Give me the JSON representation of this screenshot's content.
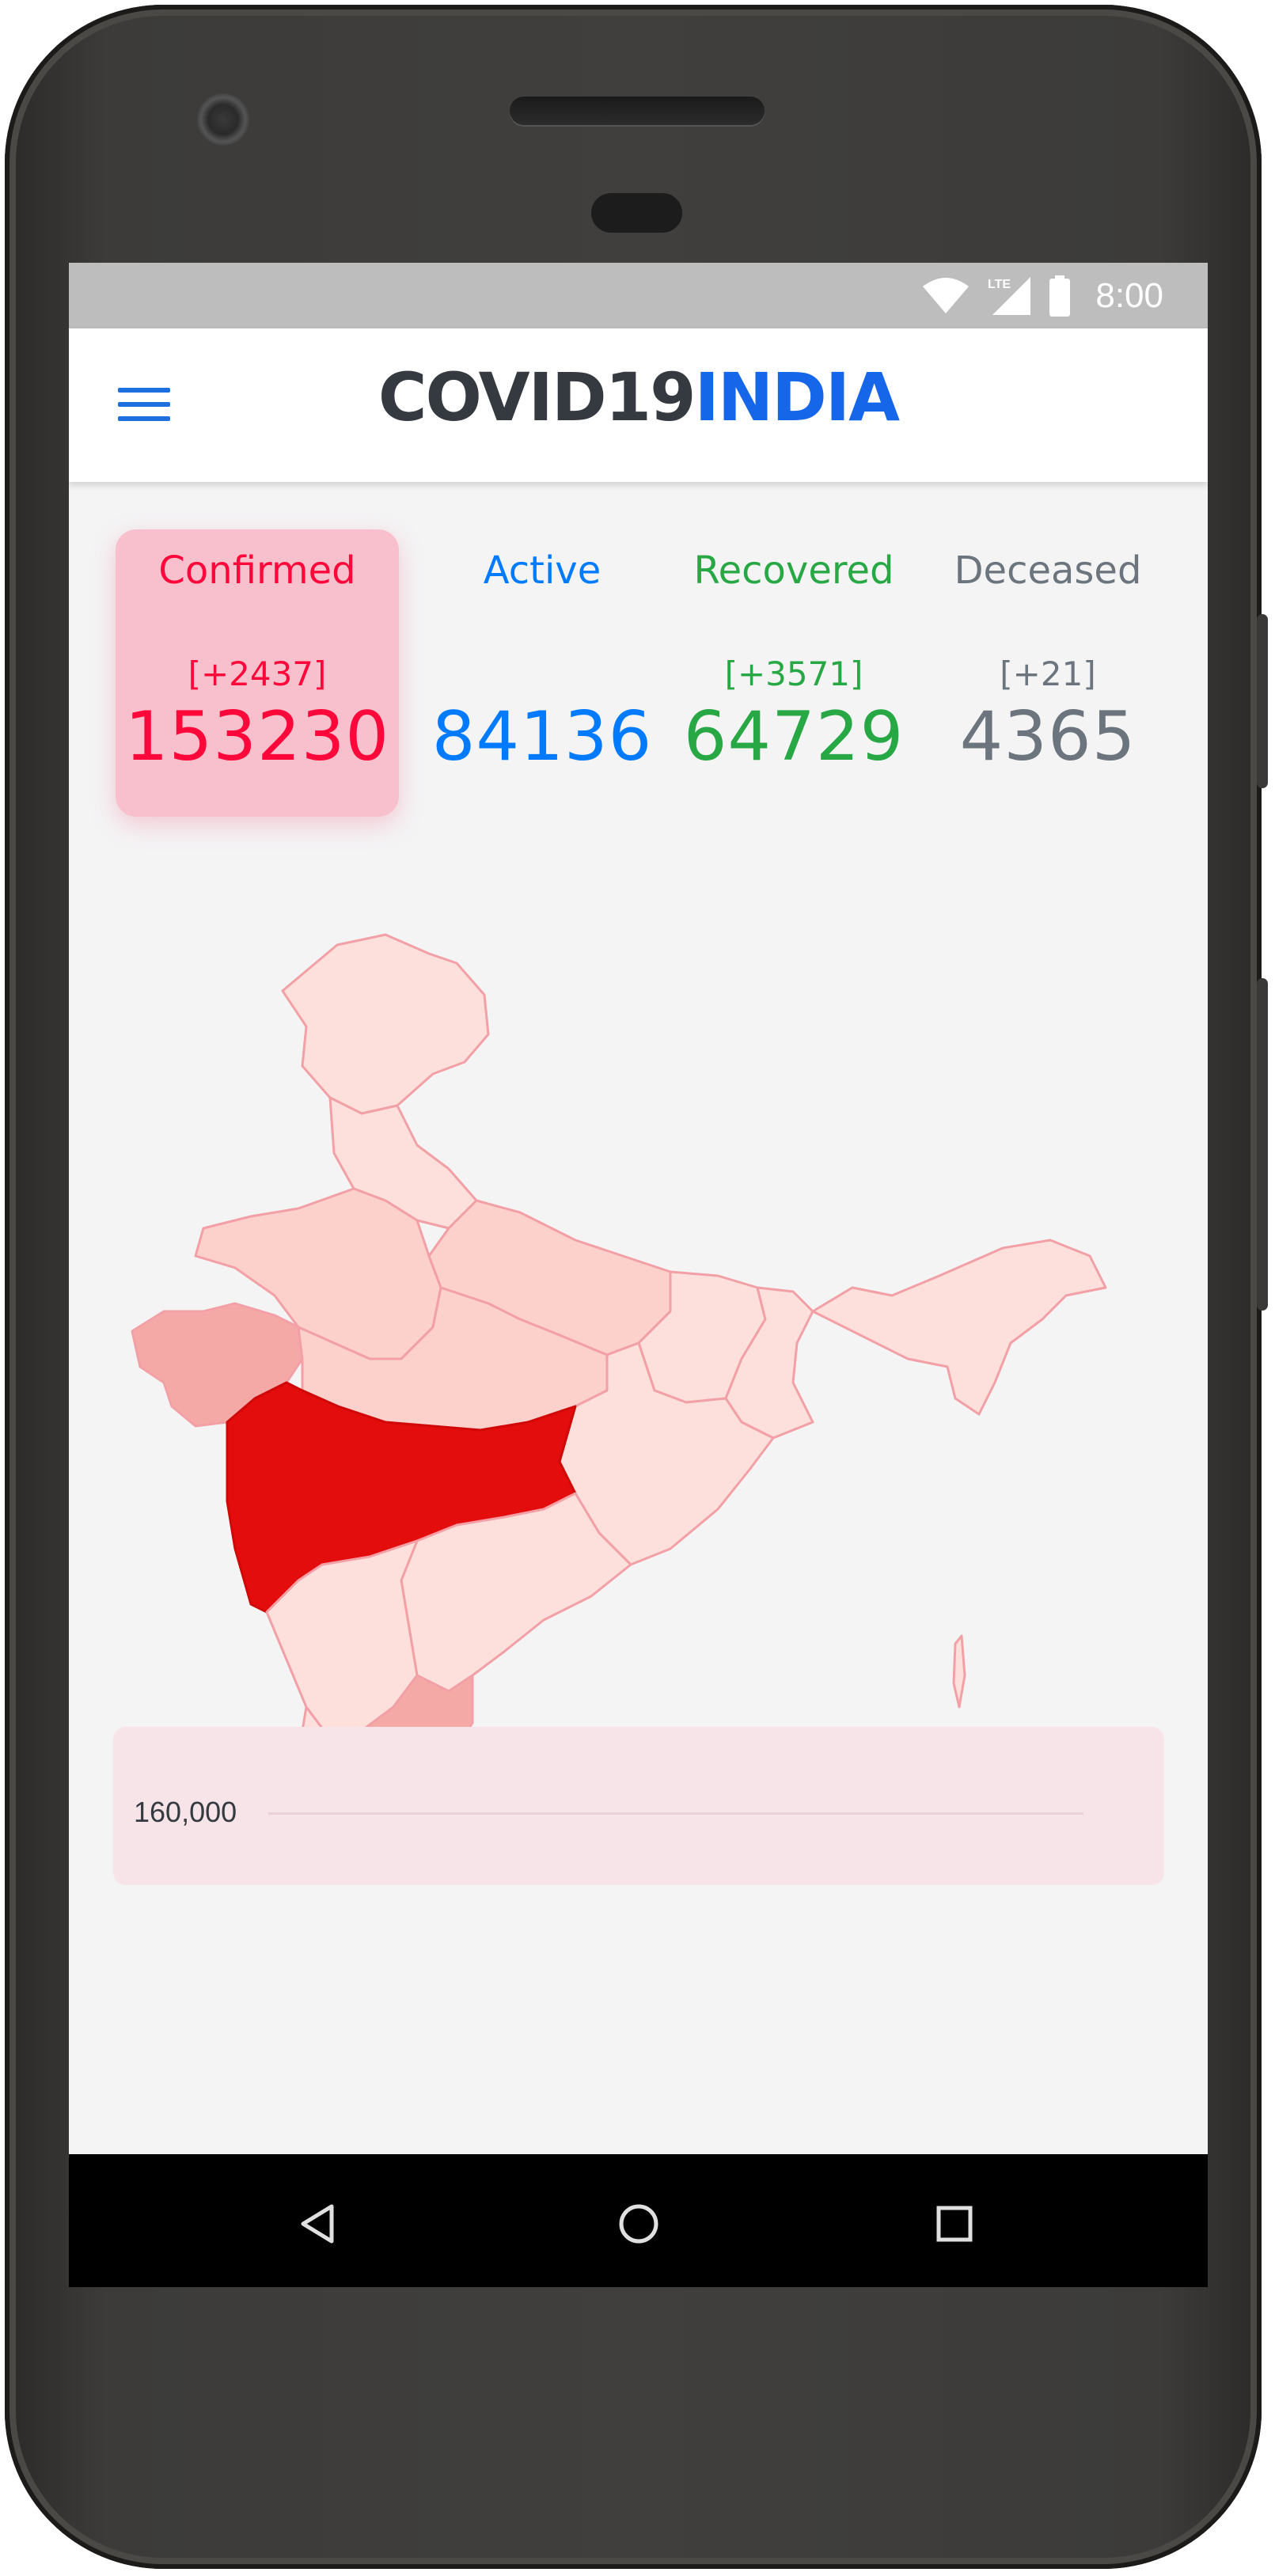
{
  "status": {
    "time": "8:00",
    "network": "LTE"
  },
  "header": {
    "brand_part1": "COVID19",
    "brand_part2": "INDIA"
  },
  "stats": {
    "confirmed": {
      "label": "Confirmed",
      "delta": "[+2437]",
      "value": "153230"
    },
    "active": {
      "label": "Active",
      "delta": "",
      "value": "84136"
    },
    "recovered": {
      "label": "Recovered",
      "delta": "[+3571]",
      "value": "64729"
    },
    "deceased": {
      "label": "Deceased",
      "delta": "[+21]",
      "value": "4365"
    }
  },
  "chart": {
    "y_tick": "160,000"
  },
  "colors": {
    "confirmed": "#ff073a",
    "active": "#007bff",
    "recovered": "#28a745",
    "deceased": "#6c757d",
    "brand_blue": "#1566e8",
    "map_highlight": "#e30d0d"
  },
  "nav": {
    "back_icon": "triangle-back",
    "home_icon": "circle-home",
    "recents_icon": "square-recents"
  }
}
